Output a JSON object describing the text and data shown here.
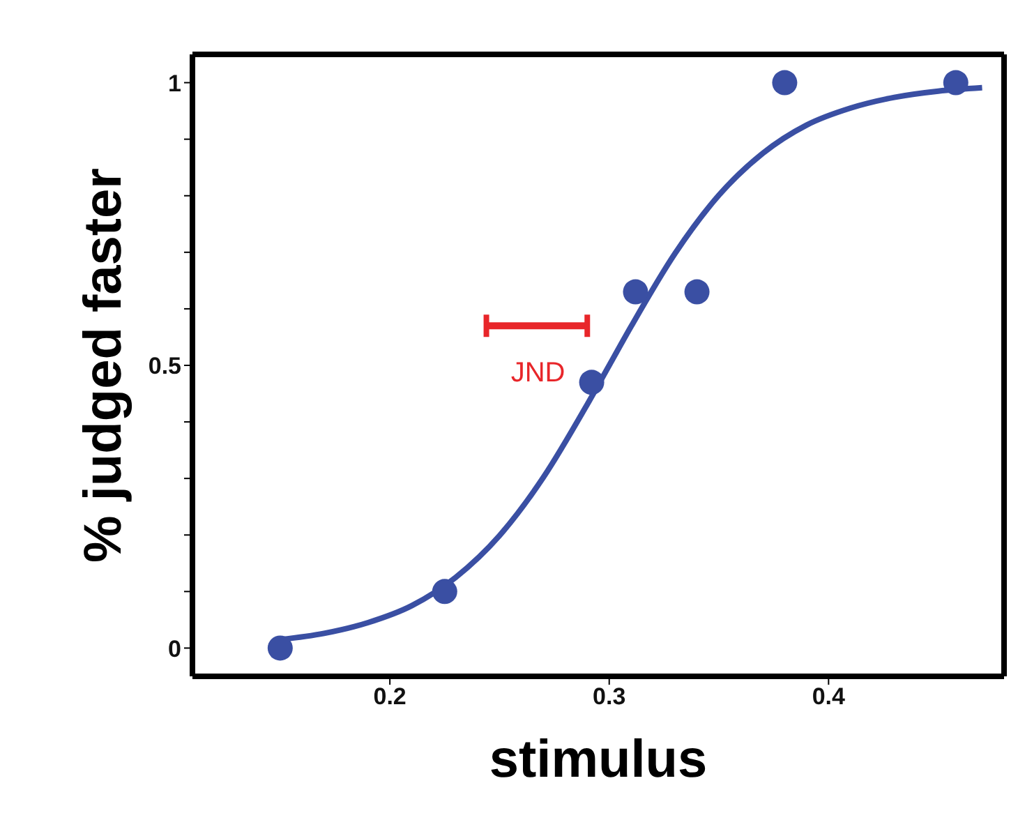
{
  "chart_data": {
    "type": "scatter",
    "xlabel": "stimulus",
    "ylabel": "% judged faster",
    "xlim": [
      0.11,
      0.48
    ],
    "xticks": [
      0.2,
      0.3,
      0.4
    ],
    "ylim": [
      -0.05,
      1.05
    ],
    "yticks": [
      0,
      {
        "value": 0.1,
        "label": null
      },
      {
        "value": 0.2,
        "label": null
      },
      {
        "value": 0.3,
        "label": null
      },
      {
        "value": 0.4,
        "label": null
      },
      0.5,
      {
        "value": 0.6,
        "label": null
      },
      {
        "value": 0.7,
        "label": null
      },
      {
        "value": 0.8,
        "label": null
      },
      {
        "value": 0.9,
        "label": null
      },
      1
    ],
    "grid": false,
    "legend": false,
    "marker": "circle",
    "series": [
      {
        "color": "#3a4fa3",
        "x": [
          0.15,
          0.225,
          0.292,
          0.312,
          0.34,
          0.38,
          0.458
        ],
        "values": [
          0,
          0.1,
          0.47,
          0.63,
          0.63,
          1,
          1
        ]
      },
      {
        "type": "line",
        "color": "#3a4fa3",
        "marker": "none",
        "x": [
          0.15,
          0.17,
          0.19,
          0.21,
          0.23,
          0.25,
          0.27,
          0.29,
          0.3,
          0.31,
          0.33,
          0.35,
          0.37,
          0.39,
          0.41,
          0.43,
          0.45,
          0.47
        ],
        "values": [
          0.015,
          0.026,
          0.045,
          0.075,
          0.125,
          0.199,
          0.302,
          0.431,
          0.5,
          0.569,
          0.698,
          0.801,
          0.875,
          0.925,
          0.955,
          0.974,
          0.985,
          0.991
        ]
      },
      {
        "type": "line",
        "color": "#e8262a",
        "marker": "none",
        "x": [
          0.244,
          0.29
        ],
        "values": [
          0.57,
          0.57
        ]
      }
    ],
    "annotations": [
      "JND"
    ]
  }
}
